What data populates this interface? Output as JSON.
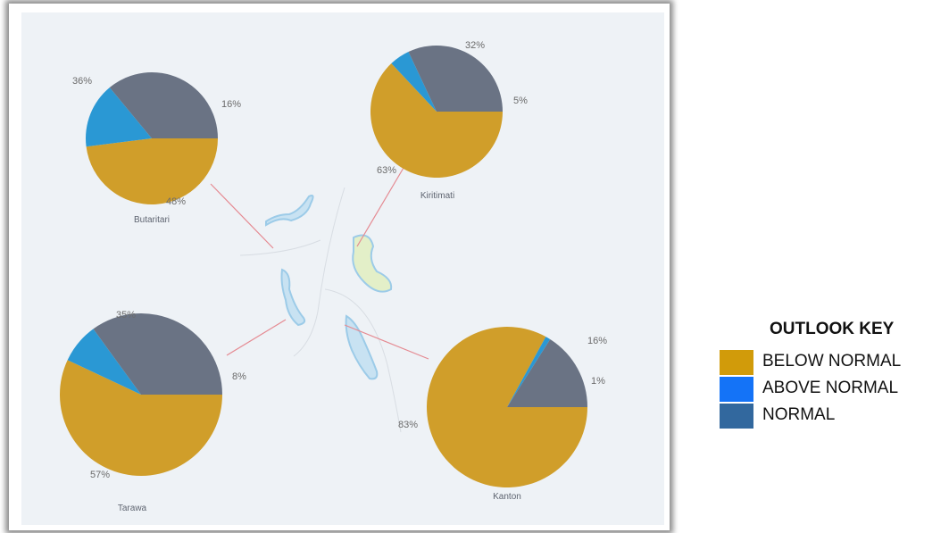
{
  "colors": {
    "below_normal": "#d09e2a",
    "above_normal": "#2a98d4",
    "normal": "#6a7384",
    "leader": "#e58a92",
    "island_fill": "#c8e2f2",
    "island_stroke": "#9ccbe8",
    "map_bg": "#eef2f6",
    "key_below_normal": "#d19b0a",
    "key_above_normal": "#1473f7",
    "key_normal": "#32689e"
  },
  "legend": {
    "title": "OUTLOOK KEY",
    "items": [
      {
        "label": "BELOW NORMAL",
        "color": "#d19b0a"
      },
      {
        "label": "ABOVE NORMAL",
        "color": "#1473f7"
      },
      {
        "label": "NORMAL",
        "color": "#32689e"
      }
    ]
  },
  "chart_data": [
    {
      "type": "pie",
      "station": "Butaritari",
      "categories": [
        "BELOW NORMAL",
        "ABOVE NORMAL",
        "NORMAL"
      ],
      "values": [
        48,
        16,
        36
      ],
      "labels": [
        "48%",
        "16%",
        "36%"
      ]
    },
    {
      "type": "pie",
      "station": "Kiritimati",
      "categories": [
        "BELOW NORMAL",
        "ABOVE NORMAL",
        "NORMAL"
      ],
      "values": [
        63,
        5,
        32
      ],
      "labels": [
        "63%",
        "5%",
        "32%"
      ]
    },
    {
      "type": "pie",
      "station": "Tarawa",
      "categories": [
        "BELOW NORMAL",
        "ABOVE NORMAL",
        "NORMAL"
      ],
      "values": [
        57,
        8,
        35
      ],
      "labels": [
        "57%",
        "8%",
        "35%"
      ]
    },
    {
      "type": "pie",
      "station": "Kanton",
      "categories": [
        "BELOW NORMAL",
        "ABOVE NORMAL",
        "NORMAL"
      ],
      "values": [
        83,
        1,
        16
      ],
      "labels": [
        "83%",
        "1%",
        "16%"
      ]
    }
  ]
}
